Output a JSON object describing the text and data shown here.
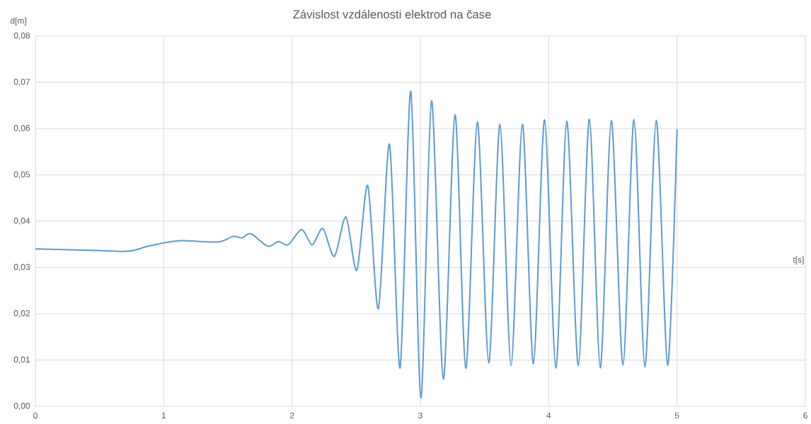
{
  "chart_data": {
    "type": "line",
    "title": "Závislost vzdálenosti elektrod na čase",
    "xlabel": "t[s]",
    "ylabel": "d[m]",
    "x": [
      0,
      0.44,
      0.72,
      0.865,
      1.0,
      1.14,
      1.42,
      1.54,
      1.61,
      1.68,
      1.81,
      1.895,
      1.97,
      2.075,
      2.157,
      2.24,
      2.33,
      2.42,
      2.505,
      2.59,
      2.673,
      2.76,
      2.842,
      2.925,
      3.004,
      3.087,
      3.179,
      3.27,
      3.354,
      3.444,
      3.533,
      3.62,
      3.707,
      3.795,
      3.881,
      3.968,
      4.056,
      4.141,
      4.231,
      4.317,
      4.402,
      4.488,
      4.579,
      4.665,
      4.75,
      4.838,
      4.927,
      5.0
    ],
    "series": [
      {
        "color": "#5b9bd5",
        "values": [
          0.034,
          0.0337,
          0.0335,
          0.0345,
          0.0353,
          0.0358,
          0.0355,
          0.0367,
          0.0364,
          0.0373,
          0.0346,
          0.0356,
          0.0349,
          0.0382,
          0.0349,
          0.0384,
          0.0324,
          0.0409,
          0.0294,
          0.0477,
          0.0211,
          0.0566,
          0.0083,
          0.0681,
          0.0018,
          0.066,
          0.0059,
          0.063,
          0.0082,
          0.0614,
          0.0094,
          0.0609,
          0.0088,
          0.061,
          0.0092,
          0.0619,
          0.0082,
          0.0616,
          0.0088,
          0.0621,
          0.0083,
          0.0617,
          0.0089,
          0.062,
          0.0085,
          0.0618,
          0.0089,
          0.0598
        ]
      }
    ],
    "xlim": [
      0,
      6
    ],
    "ylim": [
      0,
      0.08
    ],
    "xticks": [
      0,
      1,
      2,
      3,
      4,
      5,
      6
    ],
    "yticks": [
      {
        "value": 0,
        "label": "0,00"
      },
      {
        "value": 0.01,
        "label": "0,01"
      },
      {
        "value": 0.02,
        "label": "0,02"
      },
      {
        "value": 0.03,
        "label": "0,03"
      },
      {
        "value": 0.04,
        "label": "0,04"
      },
      {
        "value": 0.05,
        "label": "0,05"
      },
      {
        "value": 0.06,
        "label": "0,06"
      },
      {
        "value": 0.07,
        "label": "0,07"
      },
      {
        "value": 0.08,
        "label": "0,08"
      }
    ],
    "grid": true,
    "marker": "none",
    "line_style": "solid"
  }
}
